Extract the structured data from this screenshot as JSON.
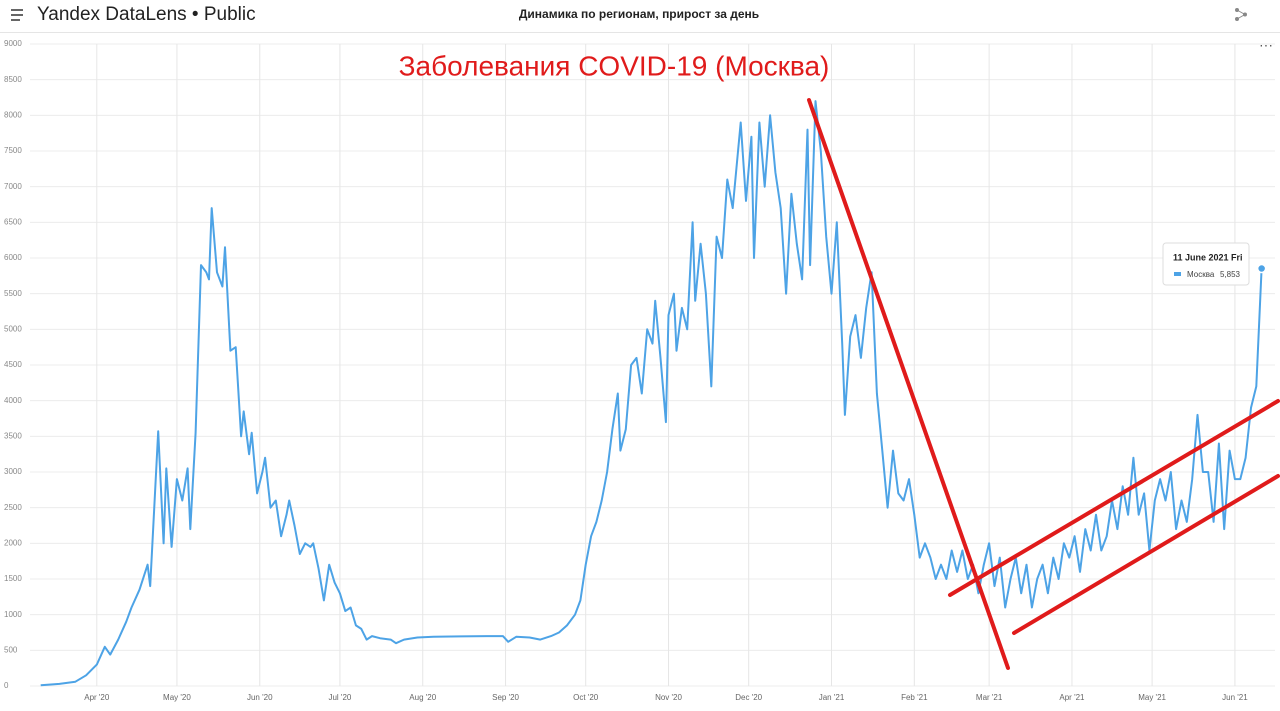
{
  "header": {
    "brand": "Yandex DataLens • Public",
    "title": "Динамика по регионам, прирост за день"
  },
  "chart_data": {
    "type": "line",
    "annotation": "Заболевания COVID-19 (Москва)",
    "x": [
      "2020-03-11",
      "2020-03-18",
      "2020-03-24",
      "2020-03-28",
      "2020-04-01",
      "2020-04-04",
      "2020-04-06",
      "2020-04-09",
      "2020-04-12",
      "2020-04-14",
      "2020-04-17",
      "2020-04-20",
      "2020-04-21",
      "2020-04-24",
      "2020-04-26",
      "2020-04-27",
      "2020-04-29",
      "2020-05-01",
      "2020-05-03",
      "2020-05-05",
      "2020-05-06",
      "2020-05-08",
      "2020-05-10",
      "2020-05-12",
      "2020-05-13",
      "2020-05-14",
      "2020-05-16",
      "2020-05-18",
      "2020-05-19",
      "2020-05-21",
      "2020-05-23",
      "2020-05-25",
      "2020-05-26",
      "2020-05-28",
      "2020-05-29",
      "2020-05-31",
      "2020-06-02",
      "2020-06-03",
      "2020-06-05",
      "2020-06-07",
      "2020-06-09",
      "2020-06-11",
      "2020-06-12",
      "2020-06-14",
      "2020-06-16",
      "2020-06-18",
      "2020-06-20",
      "2020-06-21",
      "2020-06-23",
      "2020-06-25",
      "2020-06-27",
      "2020-06-29",
      "2020-07-01",
      "2020-07-03",
      "2020-07-05",
      "2020-07-07",
      "2020-07-09",
      "2020-07-11",
      "2020-07-13",
      "2020-07-16",
      "2020-07-20",
      "2020-07-22",
      "2020-07-25",
      "2020-07-30",
      "2020-08-05",
      "2020-08-15",
      "2020-08-25",
      "2020-08-31",
      "2020-09-02",
      "2020-09-05",
      "2020-09-10",
      "2020-09-14",
      "2020-09-18",
      "2020-09-21",
      "2020-09-24",
      "2020-09-27",
      "2020-09-29",
      "2020-10-01",
      "2020-10-03",
      "2020-10-05",
      "2020-10-07",
      "2020-10-09",
      "2020-10-11",
      "2020-10-13",
      "2020-10-14",
      "2020-10-16",
      "2020-10-18",
      "2020-10-20",
      "2020-10-22",
      "2020-10-24",
      "2020-10-26",
      "2020-10-27",
      "2020-10-29",
      "2020-10-31",
      "2020-11-01",
      "2020-11-03",
      "2020-11-04",
      "2020-11-06",
      "2020-11-08",
      "2020-11-10",
      "2020-11-11",
      "2020-11-13",
      "2020-11-15",
      "2020-11-17",
      "2020-11-19",
      "2020-11-21",
      "2020-11-23",
      "2020-11-25",
      "2020-11-28",
      "2020-11-30",
      "2020-12-02",
      "2020-12-03",
      "2020-12-05",
      "2020-12-07",
      "2020-12-09",
      "2020-12-11",
      "2020-12-13",
      "2020-12-15",
      "2020-12-17",
      "2020-12-19",
      "2020-12-21",
      "2020-12-23",
      "2020-12-24",
      "2020-12-26",
      "2020-12-28",
      "2020-12-30",
      "2021-01-01",
      "2021-01-03",
      "2021-01-05",
      "2021-01-06",
      "2021-01-08",
      "2021-01-10",
      "2021-01-12",
      "2021-01-14",
      "2021-01-16",
      "2021-01-18",
      "2021-01-20",
      "2021-01-22",
      "2021-01-24",
      "2021-01-26",
      "2021-01-28",
      "2021-01-30",
      "2021-02-01",
      "2021-02-03",
      "2021-02-05",
      "2021-02-07",
      "2021-02-09",
      "2021-02-11",
      "2021-02-13",
      "2021-02-15",
      "2021-02-17",
      "2021-02-19",
      "2021-02-21",
      "2021-02-23",
      "2021-02-25",
      "2021-02-27",
      "2021-03-01",
      "2021-03-03",
      "2021-03-05",
      "2021-03-07",
      "2021-03-09",
      "2021-03-11",
      "2021-03-13",
      "2021-03-15",
      "2021-03-17",
      "2021-03-19",
      "2021-03-21",
      "2021-03-23",
      "2021-03-25",
      "2021-03-27",
      "2021-03-29",
      "2021-03-31",
      "2021-04-02",
      "2021-04-04",
      "2021-04-06",
      "2021-04-08",
      "2021-04-10",
      "2021-04-12",
      "2021-04-14",
      "2021-04-16",
      "2021-04-18",
      "2021-04-20",
      "2021-04-22",
      "2021-04-24",
      "2021-04-26",
      "2021-04-28",
      "2021-04-30",
      "2021-05-02",
      "2021-05-04",
      "2021-05-06",
      "2021-05-08",
      "2021-05-10",
      "2021-05-12",
      "2021-05-14",
      "2021-05-16",
      "2021-05-18",
      "2021-05-20",
      "2021-05-22",
      "2021-05-24",
      "2021-05-26",
      "2021-05-28",
      "2021-05-30",
      "2021-06-01",
      "2021-06-03",
      "2021-06-05",
      "2021-06-07",
      "2021-06-09",
      "2021-06-11"
    ],
    "series": [
      {
        "name": "Москва",
        "color": "#4da3e6",
        "values": [
          10,
          30,
          60,
          150,
          300,
          550,
          440,
          650,
          900,
          1100,
          1350,
          1700,
          1400,
          3570,
          2000,
          3050,
          1950,
          2900,
          2600,
          3050,
          2200,
          3550,
          5900,
          5800,
          5700,
          6700,
          5800,
          5600,
          6150,
          4700,
          4750,
          3500,
          3850,
          3250,
          3550,
          2700,
          3000,
          3200,
          2500,
          2600,
          2100,
          2400,
          2600,
          2250,
          1850,
          2000,
          1950,
          2000,
          1650,
          1200,
          1700,
          1450,
          1300,
          1050,
          1100,
          850,
          800,
          650,
          700,
          670,
          650,
          600,
          650,
          680,
          690,
          695,
          700,
          700,
          620,
          690,
          680,
          650,
          700,
          750,
          850,
          1000,
          1200,
          1700,
          2100,
          2300,
          2600,
          3000,
          3600,
          4100,
          3300,
          3600,
          4500,
          4600,
          4100,
          5000,
          4800,
          5400,
          4600,
          3700,
          5200,
          5500,
          4700,
          5300,
          5000,
          6500,
          5400,
          6200,
          5500,
          4200,
          6300,
          6000,
          7100,
          6700,
          7900,
          6800,
          7700,
          6000,
          7900,
          7000,
          8000,
          7200,
          6700,
          5500,
          6900,
          6200,
          5700,
          7800,
          5900,
          8200,
          7500,
          6300,
          5500,
          6500,
          4800,
          3800,
          4900,
          5200,
          4600,
          5300,
          5800,
          4100,
          3300,
          2500,
          3300,
          2700,
          2600,
          2900,
          2400,
          1800,
          2000,
          1800,
          1500,
          1700,
          1500,
          1900,
          1600,
          1900,
          1500,
          1700,
          1300,
          1700,
          2000,
          1400,
          1800,
          1100,
          1500,
          1800,
          1300,
          1700,
          1100,
          1500,
          1700,
          1300,
          1800,
          1500,
          2000,
          1800,
          2100,
          1600,
          2200,
          1900,
          2400,
          1900,
          2100,
          2600,
          2200,
          2800,
          2400,
          3200,
          2400,
          2700,
          1900,
          2600,
          2900,
          2600,
          3000,
          2200,
          2600,
          2300,
          2900,
          3800,
          3000,
          3000,
          2300,
          3400,
          2200,
          3300,
          2900,
          2900,
          3200,
          3900,
          4200,
          5853
        ]
      }
    ],
    "xlim": [
      "2020-03-07",
      "2021-06-16"
    ],
    "xticks": [
      {
        "value": "2020-04-01",
        "label": "Apr '20"
      },
      {
        "value": "2020-05-01",
        "label": "May '20"
      },
      {
        "value": "2020-06-01",
        "label": "Jun '20"
      },
      {
        "value": "2020-07-01",
        "label": "Jul '20"
      },
      {
        "value": "2020-08-01",
        "label": "Aug '20"
      },
      {
        "value": "2020-09-01",
        "label": "Sep '20"
      },
      {
        "value": "2020-10-01",
        "label": "Oct '20"
      },
      {
        "value": "2020-11-01",
        "label": "Nov '20"
      },
      {
        "value": "2020-12-01",
        "label": "Dec '20"
      },
      {
        "value": "2021-01-01",
        "label": "Jan '21"
      },
      {
        "value": "2021-02-01",
        "label": "Feb '21"
      },
      {
        "value": "2021-03-01",
        "label": "Mar '21"
      },
      {
        "value": "2021-04-01",
        "label": "Apr '21"
      },
      {
        "value": "2021-05-01",
        "label": "May '21"
      },
      {
        "value": "2021-06-01",
        "label": "Jun '21"
      }
    ],
    "ylim": [
      0,
      9000
    ],
    "yticks": [
      0,
      500,
      1000,
      1500,
      2000,
      2500,
      3000,
      3500,
      4000,
      4500,
      5000,
      5500,
      6000,
      6500,
      7000,
      7500,
      8000,
      8500,
      9000
    ],
    "grid": true,
    "tooltip": {
      "title": "11 June 2021 Fri",
      "value": 5853,
      "label": "5,853"
    }
  }
}
